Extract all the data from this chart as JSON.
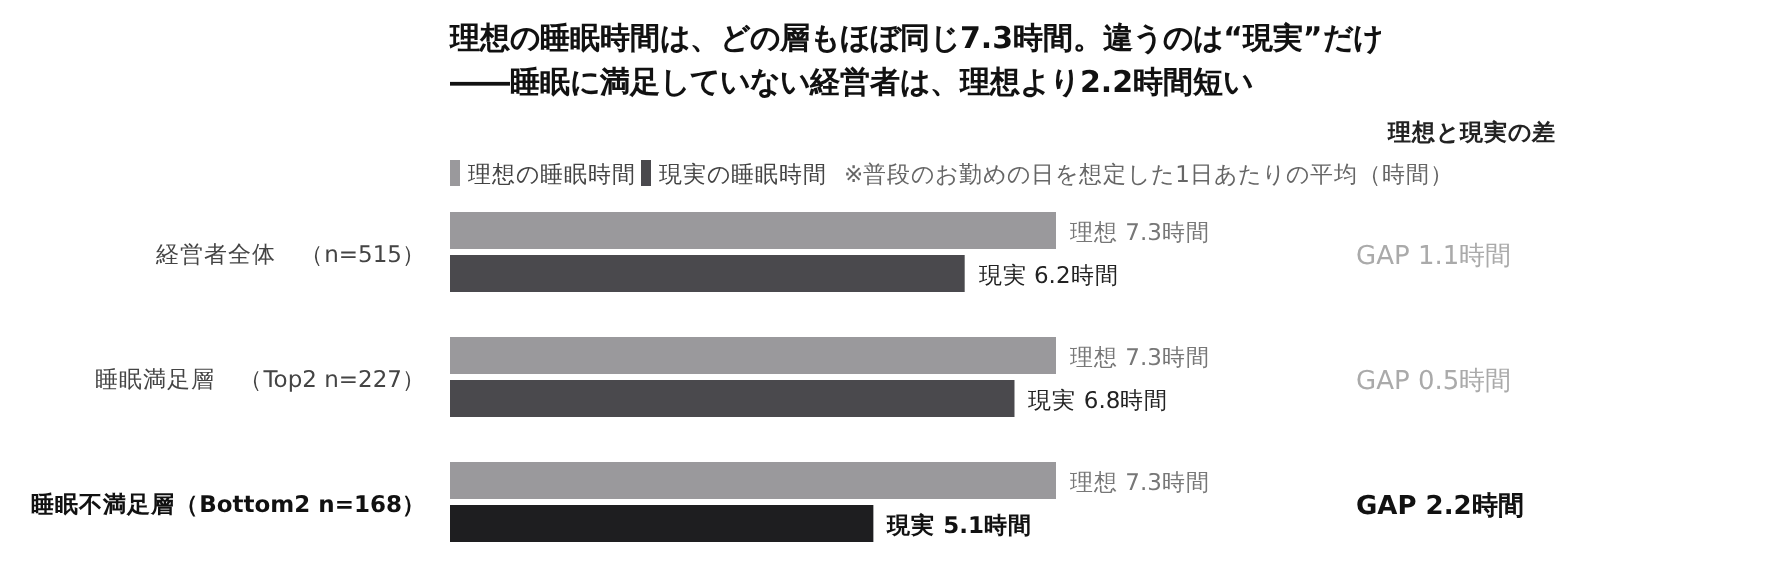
{
  "chart_data": {
    "type": "bar",
    "orientation": "horizontal",
    "title": "理想の睡眠時間は、どの層もほぼ同じ7.3時間。違うのは“現実”だけ",
    "subtitle": "――睡眠に満足していない経営者は、理想より2.2時間短い",
    "categories": [
      "経営者全体　（n=515）",
      "睡眠満足層　（Top2 n=227）",
      "睡眠不満足層（Bottom2 n=168）"
    ],
    "series": [
      {
        "name": "理想の睡眠時間",
        "color": "#9a999c",
        "values": [
          7.3,
          7.3,
          7.3
        ],
        "value_labels": [
          "理想 7.3時間",
          "理想 7.3時間",
          "理想 7.3時間"
        ]
      },
      {
        "name": "現実の睡眠時間",
        "color": "#4a494d",
        "colors": [
          "#4a494d",
          "#4a494d",
          "#1e1e20"
        ],
        "values": [
          6.2,
          6.8,
          5.1
        ],
        "value_labels": [
          "現実 6.2時間",
          "現実 6.8時間",
          "現実 5.1時間"
        ]
      }
    ],
    "legend": "top left",
    "annotations": [
      "※普段のお勤めの日を想定した1日あたりの平均（時間）",
      "理想と現実の差",
      "GAP 1.1時間",
      "GAP 0.5時間",
      "GAP 2.2時間"
    ]
  }
}
